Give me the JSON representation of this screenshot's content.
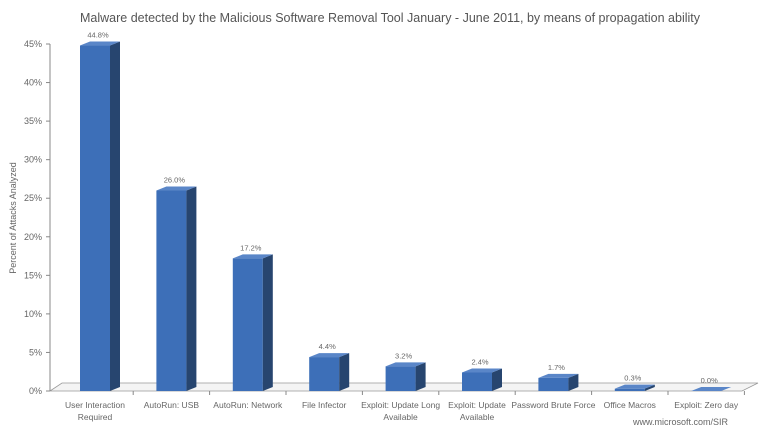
{
  "chart_data": {
    "type": "bar",
    "title": "Malware detected by the Malicious Software Removal Tool January - June 2011, by means of propagation ability",
    "ylabel": "Percent of Attacks Analyzed",
    "xlabel": "",
    "ylim": [
      0,
      45
    ],
    "yticks": [
      "0%",
      "5%",
      "10%",
      "15%",
      "20%",
      "25%",
      "30%",
      "35%",
      "40%",
      "45%"
    ],
    "categories": [
      [
        "User Interaction",
        "Required"
      ],
      [
        "AutoRun: USB"
      ],
      [
        "AutoRun: Network"
      ],
      [
        "File Infector"
      ],
      [
        "Exploit: Update Long",
        "Available"
      ],
      [
        "Exploit: Update",
        "Available"
      ],
      [
        "Password Brute Force"
      ],
      [
        "Office Macros"
      ],
      [
        "Exploit: Zero day"
      ]
    ],
    "values": [
      44.8,
      26.0,
      17.2,
      4.4,
      3.2,
      2.4,
      1.7,
      0.3,
      0.0
    ],
    "data_labels": [
      "44.8%",
      "26.0%",
      "17.2%",
      "4.4%",
      "3.2%",
      "2.4%",
      "1.7%",
      "0.3%",
      "0.0%"
    ],
    "grid": false,
    "bar_color": "#3d6fb8",
    "bar_side_color": "#27456f",
    "source": "www.microsoft.com/SIR"
  }
}
